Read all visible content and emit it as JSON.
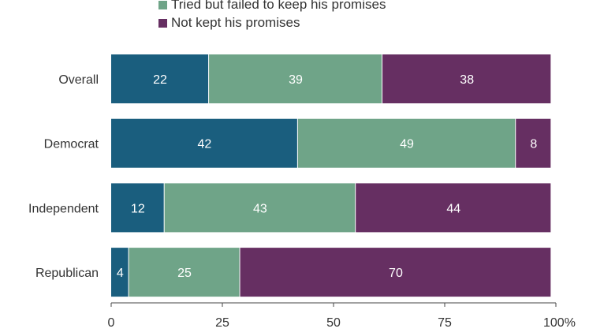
{
  "chart_data": {
    "type": "bar",
    "orientation": "horizontal",
    "stacked": true,
    "categories": [
      "Overall",
      "Democrat",
      "Independent",
      "Republican"
    ],
    "series": [
      {
        "name": "",
        "values": [
          22,
          42,
          12,
          4
        ],
        "color": "#1a5e7e"
      },
      {
        "name": "Tried but failed to keep his promises",
        "values": [
          39,
          49,
          43,
          25
        ],
        "color": "#6fa488"
      },
      {
        "name": "Not kept his promises",
        "values": [
          38,
          8,
          44,
          70
        ],
        "color": "#662f62"
      }
    ],
    "xlim": [
      0,
      100
    ],
    "xticks": [
      "0",
      "25",
      "50",
      "75",
      "100%"
    ],
    "legend_position": "top",
    "grid": false
  }
}
